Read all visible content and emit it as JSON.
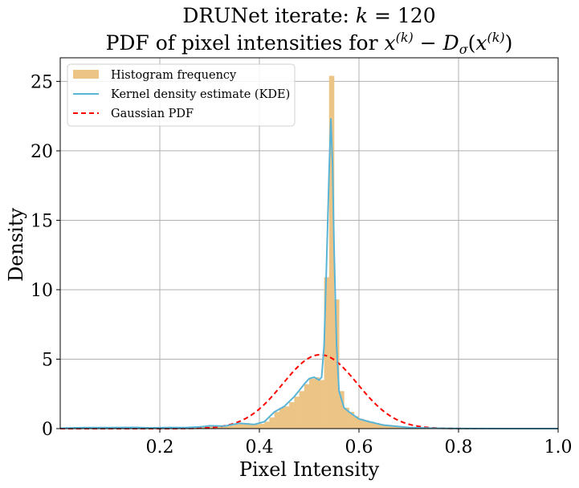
{
  "chart_data": {
    "type": "bar",
    "title_line1": "DRUNet iterate: k = 120",
    "title_line2": "PDF of pixel intensities for x(k) − Dσ(x(k))",
    "xlabel": "Pixel Intensity",
    "ylabel": "Density",
    "xlim": [
      0.0,
      1.0
    ],
    "ylim": [
      0,
      26.7
    ],
    "xticks": [
      0.2,
      0.4,
      0.6,
      0.8,
      1.0
    ],
    "xtick_labels": [
      "0.2",
      "0.4",
      "0.6",
      "0.8",
      "1.0"
    ],
    "yticks": [
      0,
      5,
      10,
      15,
      20,
      25
    ],
    "ytick_labels": [
      "0",
      "5",
      "10",
      "15",
      "20",
      "25"
    ],
    "grid": true,
    "legend_placement": "top-left",
    "colors": {
      "histogram": "#ecc486",
      "kde": "#5ab4d6",
      "gaussian": "#ff0000"
    },
    "legend": [
      "Histogram frequency",
      "Kernel density estimate (KDE)",
      "Gaussian PDF"
    ],
    "histogram": {
      "name": "Histogram frequency",
      "bin_width": 0.01,
      "bins": [
        [
          0.0,
          0.03
        ],
        [
          0.01,
          0.05
        ],
        [
          0.02,
          0.05
        ],
        [
          0.03,
          0.07
        ],
        [
          0.04,
          0.08
        ],
        [
          0.05,
          0.07
        ],
        [
          0.06,
          0.06
        ],
        [
          0.07,
          0.06
        ],
        [
          0.08,
          0.05
        ],
        [
          0.09,
          0.06
        ],
        [
          0.1,
          0.07
        ],
        [
          0.11,
          0.08
        ],
        [
          0.12,
          0.09
        ],
        [
          0.13,
          0.1
        ],
        [
          0.14,
          0.1
        ],
        [
          0.15,
          0.09
        ],
        [
          0.16,
          0.08
        ],
        [
          0.17,
          0.06
        ],
        [
          0.18,
          0.05
        ],
        [
          0.19,
          0.06
        ],
        [
          0.2,
          0.07
        ],
        [
          0.21,
          0.08
        ],
        [
          0.22,
          0.08
        ],
        [
          0.23,
          0.07
        ],
        [
          0.24,
          0.06
        ],
        [
          0.25,
          0.07
        ],
        [
          0.26,
          0.08
        ],
        [
          0.27,
          0.1
        ],
        [
          0.28,
          0.12
        ],
        [
          0.29,
          0.15
        ],
        [
          0.3,
          0.2
        ],
        [
          0.31,
          0.22
        ],
        [
          0.32,
          0.2
        ],
        [
          0.33,
          0.18
        ],
        [
          0.34,
          0.22
        ],
        [
          0.35,
          0.3
        ],
        [
          0.36,
          0.38
        ],
        [
          0.37,
          0.4
        ],
        [
          0.38,
          0.35
        ],
        [
          0.39,
          0.3
        ],
        [
          0.4,
          0.35
        ],
        [
          0.41,
          0.5
        ],
        [
          0.42,
          0.8
        ],
        [
          0.43,
          1.2
        ],
        [
          0.44,
          1.5
        ],
        [
          0.45,
          1.6
        ],
        [
          0.46,
          1.9
        ],
        [
          0.47,
          2.3
        ],
        [
          0.48,
          2.7
        ],
        [
          0.49,
          3.2
        ],
        [
          0.5,
          3.6
        ],
        [
          0.51,
          3.7
        ],
        [
          0.52,
          3.5
        ],
        [
          0.53,
          10.9
        ],
        [
          0.54,
          25.4
        ],
        [
          0.55,
          9.3
        ],
        [
          0.56,
          2.7
        ],
        [
          0.57,
          1.5
        ],
        [
          0.58,
          1.2
        ],
        [
          0.59,
          0.9
        ],
        [
          0.6,
          0.7
        ],
        [
          0.61,
          0.6
        ],
        [
          0.62,
          0.5
        ],
        [
          0.63,
          0.4
        ],
        [
          0.64,
          0.32
        ],
        [
          0.65,
          0.25
        ],
        [
          0.66,
          0.2
        ],
        [
          0.67,
          0.15
        ],
        [
          0.68,
          0.12
        ],
        [
          0.69,
          0.1
        ],
        [
          0.7,
          0.08
        ],
        [
          0.71,
          0.06
        ],
        [
          0.72,
          0.05
        ],
        [
          0.73,
          0.04
        ],
        [
          0.74,
          0.03
        ],
        [
          0.75,
          0.03
        ],
        [
          0.76,
          0.02
        ],
        [
          0.77,
          0.02
        ],
        [
          0.78,
          0.02
        ],
        [
          0.79,
          0.01
        ]
      ]
    },
    "series": [
      {
        "name": "Kernel density estimate (KDE)",
        "points": [
          [
            0.0,
            0.03
          ],
          [
            0.05,
            0.07
          ],
          [
            0.1,
            0.07
          ],
          [
            0.15,
            0.09
          ],
          [
            0.18,
            0.05
          ],
          [
            0.22,
            0.08
          ],
          [
            0.25,
            0.07
          ],
          [
            0.28,
            0.12
          ],
          [
            0.3,
            0.2
          ],
          [
            0.33,
            0.18
          ],
          [
            0.36,
            0.38
          ],
          [
            0.39,
            0.3
          ],
          [
            0.41,
            0.5
          ],
          [
            0.43,
            1.2
          ],
          [
            0.45,
            1.6
          ],
          [
            0.47,
            2.3
          ],
          [
            0.49,
            3.2
          ],
          [
            0.5,
            3.6
          ],
          [
            0.51,
            3.7
          ],
          [
            0.52,
            3.5
          ],
          [
            0.525,
            3.7
          ],
          [
            0.53,
            6.0
          ],
          [
            0.535,
            12.0
          ],
          [
            0.54,
            18.5
          ],
          [
            0.5435,
            22.3
          ],
          [
            0.547,
            19.0
          ],
          [
            0.55,
            13.0
          ],
          [
            0.555,
            6.0
          ],
          [
            0.56,
            2.7
          ],
          [
            0.57,
            1.5
          ],
          [
            0.58,
            1.2
          ],
          [
            0.6,
            0.7
          ],
          [
            0.62,
            0.5
          ],
          [
            0.65,
            0.25
          ],
          [
            0.7,
            0.08
          ],
          [
            0.75,
            0.03
          ],
          [
            0.8,
            0.01
          ],
          [
            0.9,
            0.0
          ],
          [
            1.0,
            0.0
          ]
        ]
      },
      {
        "name": "Gaussian PDF",
        "mu": 0.522,
        "sigma": 0.075
      }
    ]
  }
}
